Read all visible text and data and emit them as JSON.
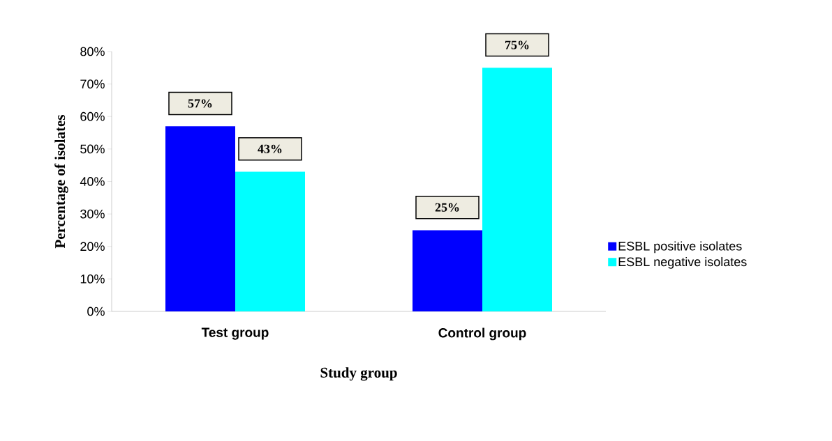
{
  "chart_data": {
    "type": "bar",
    "xlabel": "Study group",
    "ylabel": "Percentage of isolates",
    "categories": [
      "Test group",
      "Control group"
    ],
    "series": [
      {
        "name": "ESBL positive isolates",
        "color": "#0000ff",
        "values": [
          57,
          25
        ],
        "value_labels": [
          "57%",
          "25%"
        ]
      },
      {
        "name": "ESBL negative isolates",
        "color": "#00ffff",
        "values": [
          43,
          75
        ],
        "value_labels": [
          "43%",
          "75%"
        ]
      }
    ],
    "ylim": [
      0,
      80
    ],
    "yticks": [
      {
        "value": 0,
        "label": "0%"
      },
      {
        "value": 10,
        "label": "10%"
      },
      {
        "value": 20,
        "label": "20%"
      },
      {
        "value": 30,
        "label": "30%"
      },
      {
        "value": 40,
        "label": "40%"
      },
      {
        "value": 50,
        "label": "50%"
      },
      {
        "value": 60,
        "label": "60%"
      },
      {
        "value": 70,
        "label": "70%"
      },
      {
        "value": 80,
        "label": "80%"
      }
    ],
    "legend": "right",
    "grid": false
  }
}
